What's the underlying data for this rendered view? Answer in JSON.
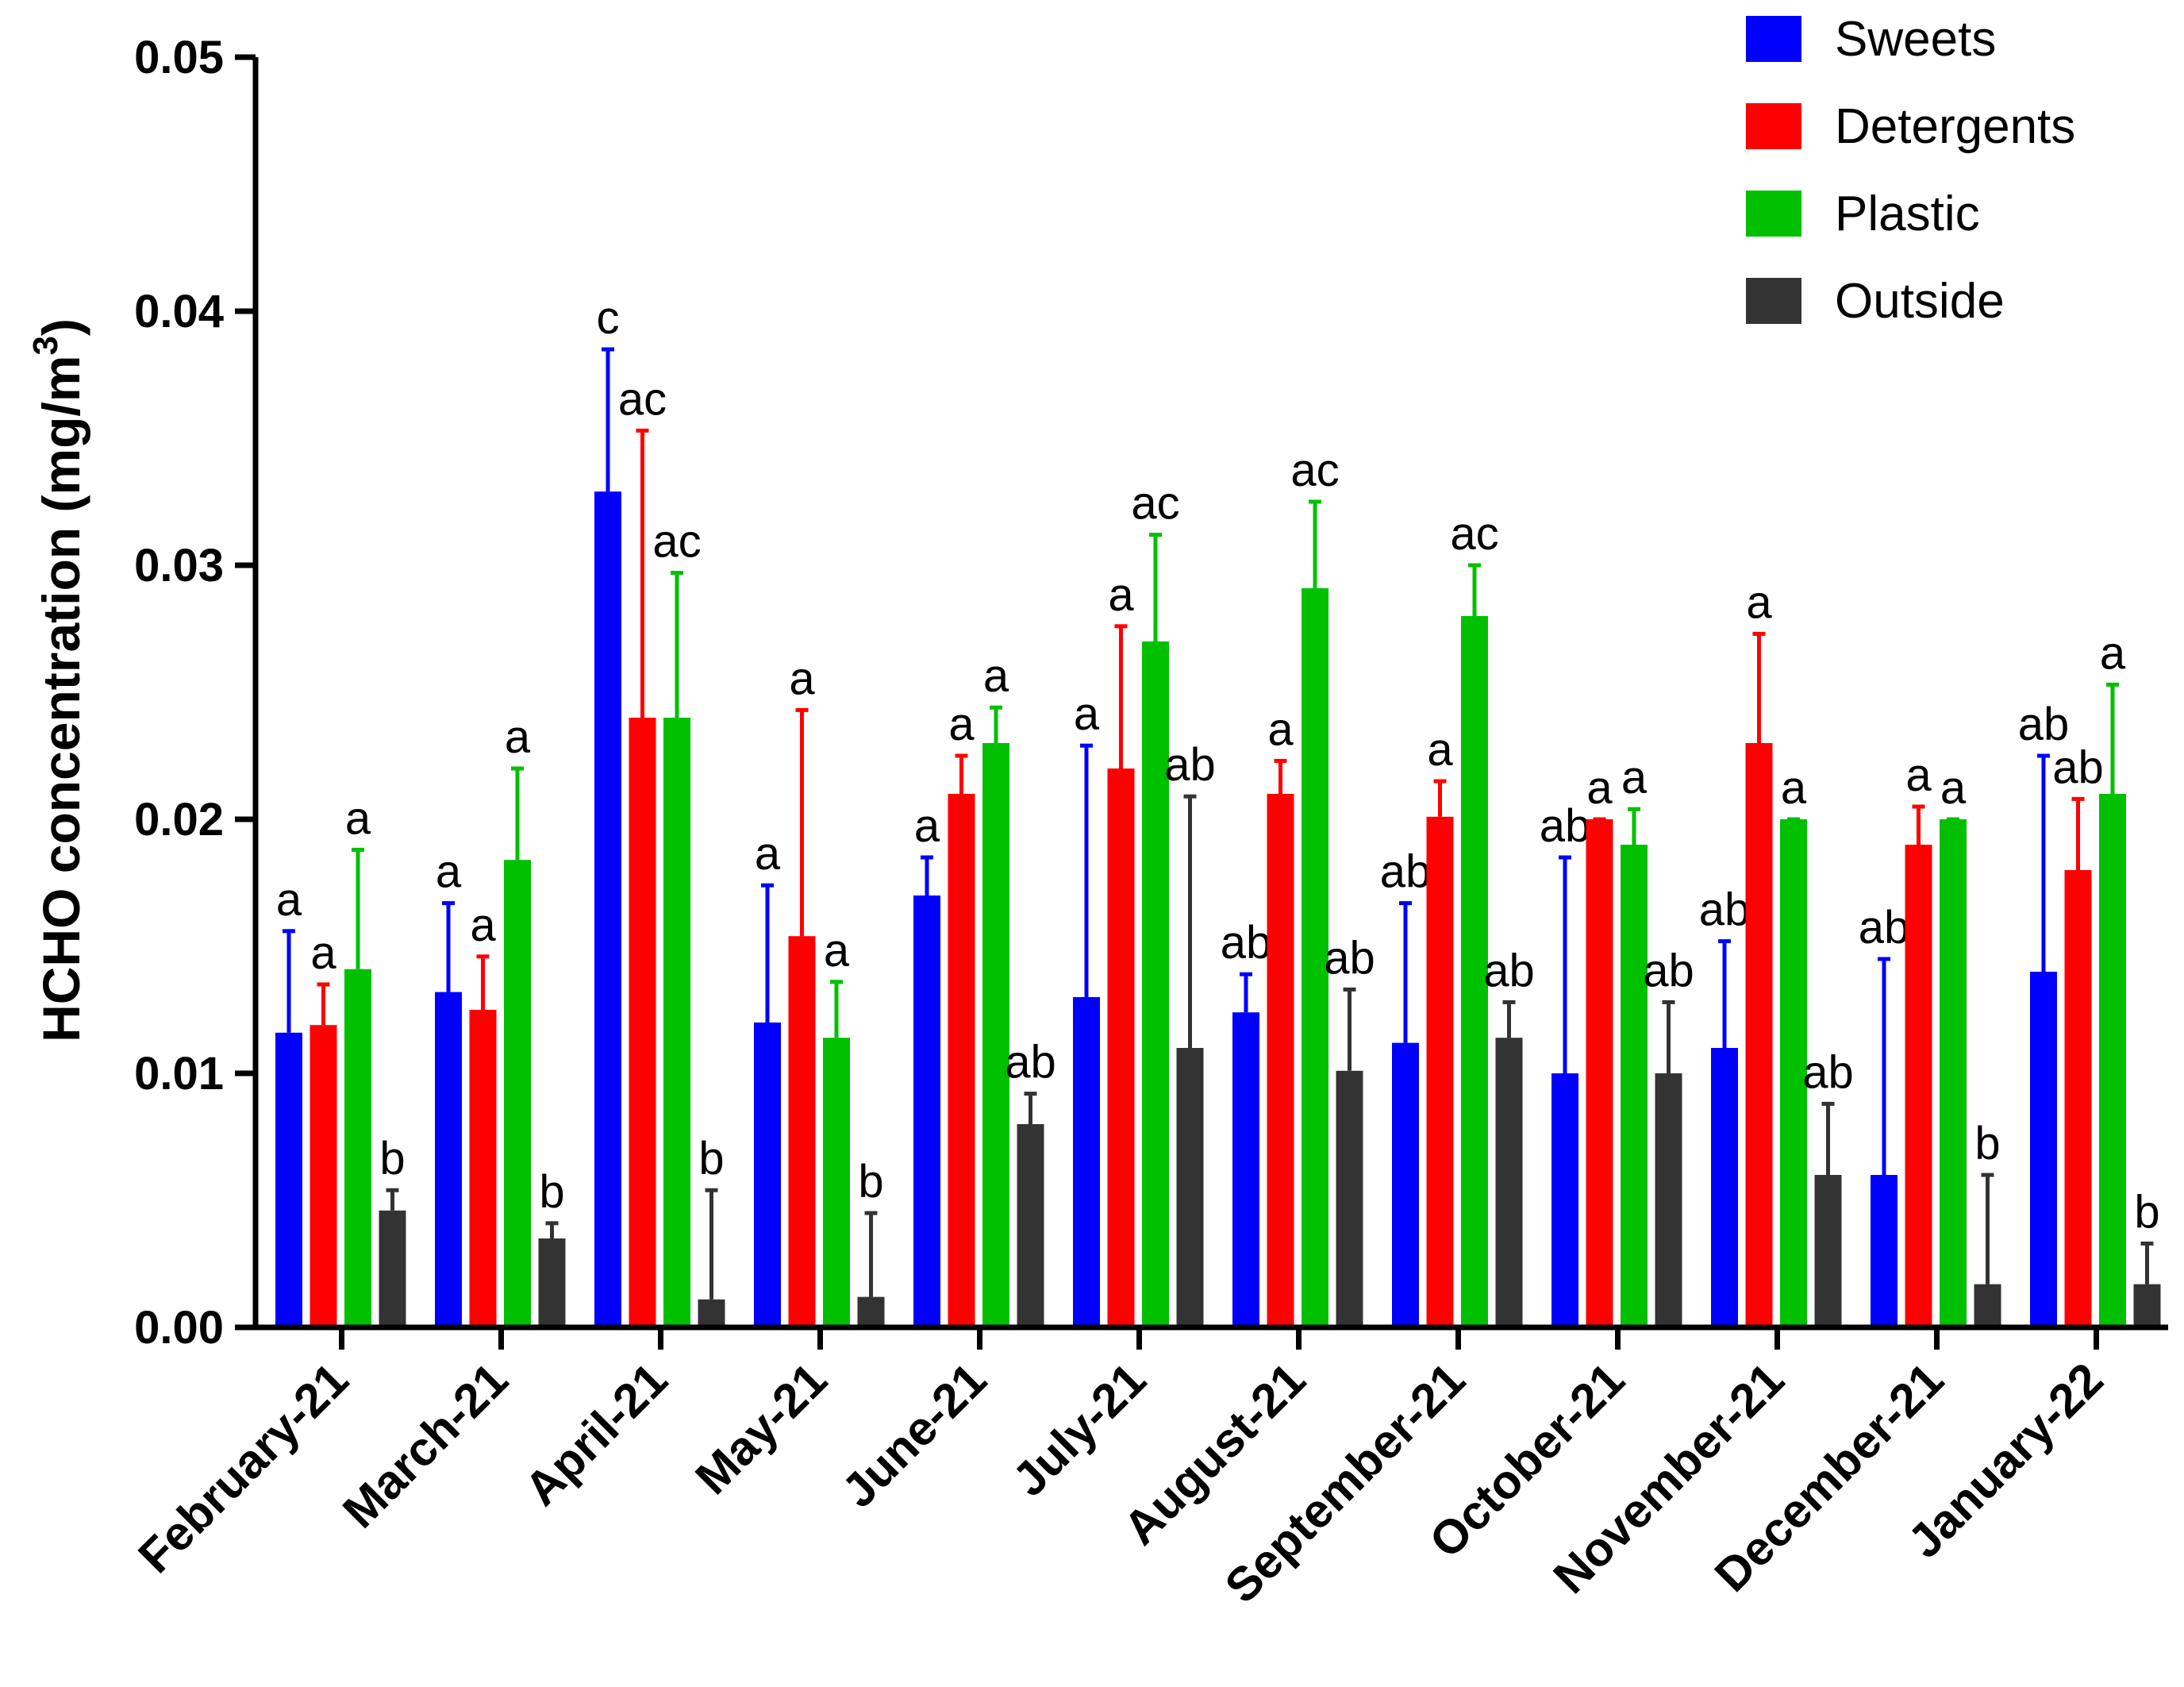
{
  "chart_data": {
    "type": "bar",
    "title": "",
    "xlabel": "",
    "ylabel": {
      "main": "HCHO concentration (mg/m",
      "superscript": "3",
      "close": ")"
    },
    "ylim": [
      0,
      0.05
    ],
    "yticks": [
      {
        "value": 0,
        "label": "0.00"
      },
      {
        "value": 0.01,
        "label": "0.01"
      },
      {
        "value": 0.02,
        "label": "0.02"
      },
      {
        "value": 0.03,
        "label": "0.03"
      },
      {
        "value": 0.04,
        "label": "0.04"
      },
      {
        "value": 0.05,
        "label": "0.05"
      }
    ],
    "legend_position": "top-right",
    "categories": [
      "February-21",
      "March-21",
      "April-21",
      "May-21",
      "June-21",
      "July-21",
      "August-21",
      "September-21",
      "October-21",
      "November-21",
      "December-21",
      "January-22"
    ],
    "series": [
      {
        "name": "Sweets",
        "color": "#0000ff",
        "values": [
          0.0116,
          0.0132,
          0.0329,
          0.012,
          0.017,
          0.013,
          0.0124,
          0.0112,
          0.01,
          0.011,
          0.006,
          0.014
        ],
        "error": [
          0.004,
          0.0035,
          0.0056,
          0.0054,
          0.0015,
          0.0099,
          0.0015,
          0.0055,
          0.0085,
          0.0042,
          0.0085,
          0.0085
        ],
        "letters": [
          "a",
          "a",
          "c",
          "a",
          "a",
          "a",
          "ab",
          "ab",
          "ab",
          "ab",
          "ab",
          "ab"
        ]
      },
      {
        "name": "Detergents",
        "color": "#ff0000",
        "values": [
          0.0119,
          0.0125,
          0.024,
          0.0154,
          0.021,
          0.022,
          0.021,
          0.0201,
          0.02,
          0.023,
          0.019,
          0.018
        ],
        "error": [
          0.0016,
          0.0021,
          0.0113,
          0.0089,
          0.0015,
          0.0056,
          0.0013,
          0.0014,
          0.0,
          0.0043,
          0.0015,
          0.0028
        ],
        "letters": [
          "a",
          "a",
          "ac",
          "a",
          "a",
          "a",
          "a",
          "a",
          "a",
          "a",
          "a",
          "ab"
        ]
      },
      {
        "name": "Plastic",
        "color": "#00c000",
        "values": [
          0.0141,
          0.0184,
          0.024,
          0.0114,
          0.023,
          0.027,
          0.0291,
          0.028,
          0.019,
          0.02,
          0.02,
          0.021
        ],
        "error": [
          0.0047,
          0.0036,
          0.0057,
          0.0022,
          0.0014,
          0.0042,
          0.0034,
          0.002,
          0.0014,
          0.0,
          0.0,
          0.0043
        ],
        "letters": [
          "a",
          "a",
          "ac",
          "a",
          "a",
          "ac",
          "ac",
          "ac",
          "a",
          "a",
          "a",
          "a"
        ]
      },
      {
        "name": "Outside",
        "color": "#333333",
        "values": [
          0.0046,
          0.0035,
          0.0011,
          0.0012,
          0.008,
          0.011,
          0.0101,
          0.0114,
          0.01,
          0.006,
          0.0017,
          0.0017
        ],
        "error": [
          0.0008,
          0.0006,
          0.0043,
          0.0033,
          0.0012,
          0.0099,
          0.0032,
          0.0014,
          0.0028,
          0.0028,
          0.0043,
          0.0016
        ],
        "letters": [
          "b",
          "b",
          "b",
          "b",
          "ab",
          "ab",
          "ab",
          "ab",
          "ab",
          "ab",
          "b",
          "b"
        ]
      }
    ]
  }
}
